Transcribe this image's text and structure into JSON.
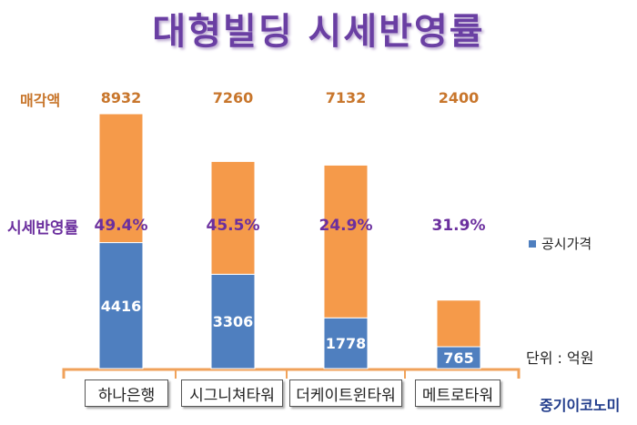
{
  "title": "대형빌딩 시세반영률",
  "row_labels": {
    "sale": "매각액",
    "rate": "시세반영률"
  },
  "legend": {
    "official": "공시가격"
  },
  "unit": "단위 : 억원",
  "source": "중기이코노미",
  "colors": {
    "official": "#4f7fbf",
    "remainder": "#f59a4a",
    "sale_text": "#c8762c",
    "rate_text": "#6b2f9e",
    "title": "#6a3fa3"
  },
  "chart_data": {
    "type": "bar",
    "stacked": true,
    "categories": [
      "하나은행",
      "시그니쳐타워",
      "더케이트윈타워",
      "메트로타워"
    ],
    "series": [
      {
        "name": "공시가격",
        "values": [
          4416,
          3306,
          1778,
          765
        ]
      },
      {
        "values": [
          4516,
          3954,
          5354,
          1635
        ]
      }
    ],
    "totals": [
      8932,
      7260,
      7132,
      2400
    ],
    "total_labels": [
      "8932",
      "7260",
      "7132",
      "2400"
    ],
    "ratio_labels": [
      "49.4%",
      "45.5%",
      "24.9%",
      "31.9%"
    ],
    "official_labels": [
      "4416",
      "3306",
      "1778",
      "765"
    ],
    "ylim": [
      0,
      8932
    ]
  }
}
